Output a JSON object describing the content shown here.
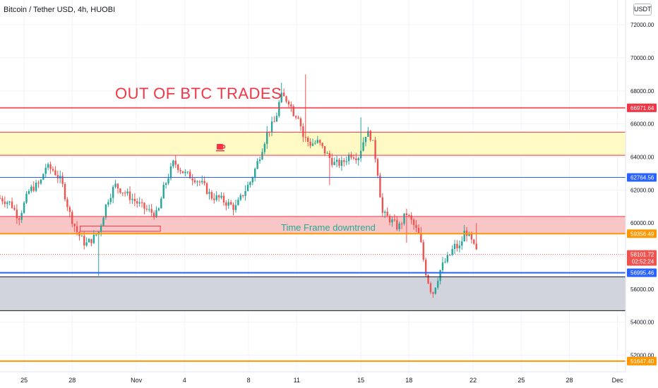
{
  "header": {
    "title": "Bitcoin / Tether USD, 4h, HUOBI",
    "currency_label": "USDT"
  },
  "annotations": {
    "headline": "OUT OF BTC TRADES",
    "zone_note": "Time Frame downtrend",
    "coffee_icon": "coffee-cup-icon"
  },
  "colors": {
    "up": "#26a69a",
    "down": "#ef5350",
    "red_line": "#f23645",
    "blue_line": "#2962ff",
    "orange_line": "#ff9800",
    "yellow_zone": "#fff9c4",
    "red_zone": "#f8c6c6",
    "grey_zone": "#d1d4dc"
  },
  "chart_data": {
    "type": "candlestick",
    "ylim": [
      51000,
      73500
    ],
    "grid": true,
    "y_ticks": [
      "72000.00",
      "70000.00",
      "68000.00",
      "66000.00",
      "64000.00",
      "62000.00",
      "60000.00",
      "58000.00",
      "56000.00",
      "54000.00",
      "52000.00"
    ],
    "x_ticks": [
      {
        "label": "25",
        "t": 0
      },
      {
        "label": "28",
        "t": 18
      },
      {
        "label": "Nov",
        "t": 42
      },
      {
        "label": "4",
        "t": 60
      },
      {
        "label": "8",
        "t": 84
      },
      {
        "label": "11",
        "t": 102
      },
      {
        "label": "15",
        "t": 126
      },
      {
        "label": "18",
        "t": 144
      },
      {
        "label": "22",
        "t": 168
      },
      {
        "label": "25",
        "t": 186
      },
      {
        "label": "28",
        "t": 204
      },
      {
        "label": "Dec",
        "t": 222
      }
    ],
    "x_range": [
      -9,
      225
    ],
    "horizontal_levels": [
      {
        "value": 66971.64,
        "label": "66971.64",
        "color": "#f23645",
        "style": "thick"
      },
      {
        "value": 65500,
        "color": "#f23645",
        "style": "thin"
      },
      {
        "value": 64100,
        "color": "#f23645",
        "style": "thin"
      },
      {
        "value": 62764.56,
        "label": "62764.56",
        "color": "#2962ff",
        "style": "thin"
      },
      {
        "value": 60400,
        "color": "#f23645",
        "style": "thin"
      },
      {
        "value": 59356.49,
        "label": "59356.49",
        "color": "#ff9800",
        "style": "thick"
      },
      {
        "value": 58101.72,
        "label": "58101.72",
        "sub_label": "02:52:24",
        "color": "#ef5350",
        "style": "dotted"
      },
      {
        "value": 56995.46,
        "label": "56995.46",
        "color": "#2962ff",
        "style": "thick"
      },
      {
        "value": 56750,
        "color": "#131722",
        "style": "thin"
      },
      {
        "value": 54700,
        "color": "#131722",
        "style": "thin"
      },
      {
        "value": 51647.4,
        "label": "51647.40",
        "color": "#ff9800",
        "style": "thick"
      }
    ],
    "zones": [
      {
        "from": 64100,
        "to": 65500,
        "color": "#fff9c4"
      },
      {
        "from": 59356.49,
        "to": 60400,
        "color": "#f8c6c6"
      },
      {
        "from": 54700,
        "to": 56750,
        "color": "#d1d4dc"
      }
    ],
    "small_box": {
      "t_from": 21,
      "t_to": 51,
      "low": 59500,
      "high": 59820
    },
    "anchors": [
      [
        -9,
        61500
      ],
      [
        -5,
        61200
      ],
      [
        -2,
        60300
      ],
      [
        2,
        62000
      ],
      [
        6,
        62400
      ],
      [
        8,
        63400
      ],
      [
        11,
        63200
      ],
      [
        14,
        62500
      ],
      [
        17,
        60600
      ],
      [
        20,
        59400
      ],
      [
        23,
        58700
      ],
      [
        26,
        59100
      ],
      [
        28,
        59500
      ],
      [
        31,
        61300
      ],
      [
        34,
        62300
      ],
      [
        38,
        61800
      ],
      [
        41,
        61400
      ],
      [
        44,
        61000
      ],
      [
        47,
        60700
      ],
      [
        50,
        60500
      ],
      [
        52,
        62000
      ],
      [
        56,
        63700
      ],
      [
        60,
        63000
      ],
      [
        64,
        62700
      ],
      [
        67,
        62300
      ],
      [
        70,
        61600
      ],
      [
        73,
        61500
      ],
      [
        76,
        61200
      ],
      [
        79,
        60900
      ],
      [
        82,
        61800
      ],
      [
        85,
        62600
      ],
      [
        88,
        64000
      ],
      [
        91,
        65500
      ],
      [
        94,
        66200
      ],
      [
        96,
        67700
      ],
      [
        99,
        67400
      ],
      [
        101,
        66600
      ],
      [
        103,
        66500
      ],
      [
        104,
        65300
      ],
      [
        107,
        64800
      ],
      [
        110,
        64900
      ],
      [
        113,
        64200
      ],
      [
        116,
        63600
      ],
      [
        119,
        63600
      ],
      [
        122,
        64200
      ],
      [
        125,
        64000
      ],
      [
        128,
        65500
      ],
      [
        130,
        65200
      ],
      [
        132,
        63500
      ],
      [
        134,
        60600
      ],
      [
        137,
        60200
      ],
      [
        140,
        59700
      ],
      [
        143,
        60600
      ],
      [
        146,
        59800
      ],
      [
        148,
        59200
      ],
      [
        150,
        57200
      ],
      [
        152,
        56000
      ],
      [
        153,
        55800
      ],
      [
        156,
        57300
      ],
      [
        159,
        58000
      ],
      [
        161,
        58600
      ],
      [
        163,
        58500
      ],
      [
        165,
        59600
      ],
      [
        167,
        59000
      ],
      [
        169,
        58300
      ],
      [
        170,
        58101.72
      ]
    ],
    "spikes": [
      [
        28,
        56800
      ],
      [
        96,
        68500
      ],
      [
        105,
        69000
      ],
      [
        114,
        62300
      ],
      [
        126,
        66400
      ],
      [
        143,
        58800
      ],
      [
        152,
        55700
      ],
      [
        169,
        60000
      ]
    ]
  }
}
